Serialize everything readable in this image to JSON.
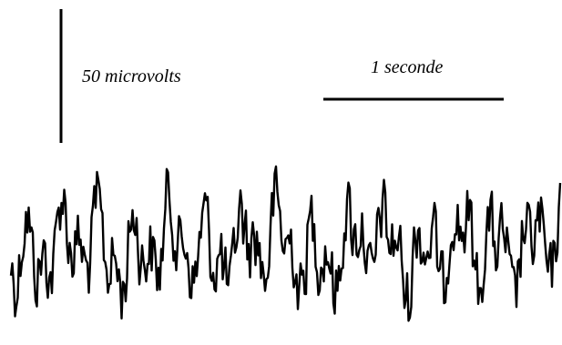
{
  "scale_bars": {
    "amplitude_label": "50 microvolts",
    "time_label": "1 seconde"
  }
}
